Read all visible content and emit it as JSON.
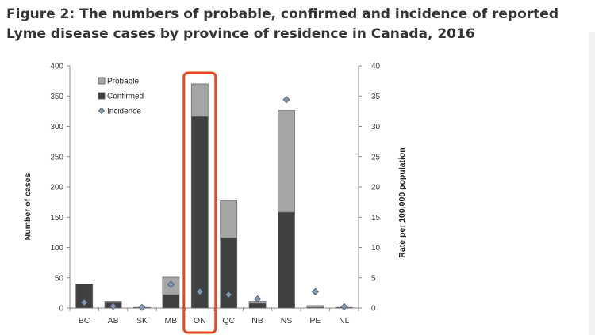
{
  "title": "Figure 2: The numbers of probable, confirmed and incidence of reported Lyme disease cases by province of residence in Canada, 2016",
  "chart_data": {
    "type": "bar",
    "stacked": true,
    "categories": [
      "BC",
      "AB",
      "SK",
      "MB",
      "ON",
      "QC",
      "NB",
      "NS",
      "PE",
      "NL"
    ],
    "series": [
      {
        "name": "Confirmed",
        "axis": "left",
        "color": "#404040",
        "values": [
          40,
          10,
          0,
          22,
          316,
          116,
          8,
          158,
          1,
          1
        ]
      },
      {
        "name": "Probable",
        "axis": "left",
        "color": "#a6a6a6",
        "values": [
          0,
          1,
          1,
          29,
          54,
          61,
          3,
          168,
          3,
          0
        ]
      },
      {
        "name": "Incidence",
        "axis": "right",
        "type": "scatter",
        "marker": "diamond",
        "color": "#8497b0",
        "values": [
          0.9,
          0.3,
          0.1,
          3.9,
          2.7,
          2.2,
          1.5,
          34.4,
          2.7,
          0.2
        ]
      }
    ],
    "ylabel": "Number of cases",
    "y2label": "Rate per 100,000 population",
    "ylim": [
      0,
      400
    ],
    "y2lim": [
      0,
      40
    ],
    "yticks": [
      0,
      50,
      100,
      150,
      200,
      250,
      300,
      350,
      400
    ],
    "y2ticks": [
      0,
      5,
      10,
      15,
      20,
      25,
      30,
      35,
      40
    ],
    "legend": [
      "Probable",
      "Confirmed",
      "Incidence"
    ],
    "legend_position": "top-left",
    "grid": false,
    "highlight": {
      "category": "ON",
      "color": "#e8471e"
    }
  }
}
